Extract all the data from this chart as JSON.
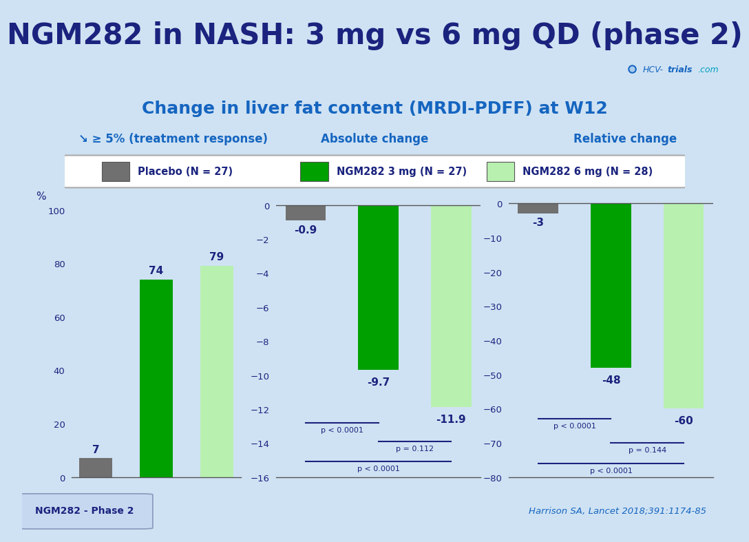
{
  "title": "NGM282 in NASH: 3 mg vs 6 mg QD (phase 2)",
  "subtitle": "Change in liver fat content (MRDI-PDFF) at W12",
  "bg_color": "#cfe2f3",
  "header_bg": "#e8f4fd",
  "title_color": "#1a237e",
  "subtitle_color": "#1565c0",
  "label_color": "#1565c0",
  "section1_title": "↘ ≥ 5% (treatment response)",
  "section2_title": "Absolute change",
  "section3_title": "Relative change",
  "legend_labels": [
    "Placebo (N = 27)",
    "NGM282 3 mg (N = 27)",
    "NGM282 6 mg (N = 28)"
  ],
  "colors": {
    "placebo": "#707070",
    "ngm3": "#00a000",
    "ngm6": "#b8f0b0"
  },
  "bar1_values": [
    7,
    74,
    79
  ],
  "bar2_values": [
    -0.9,
    -9.7,
    -11.9
  ],
  "bar3_values": [
    -3,
    -48,
    -60
  ],
  "bar1_labels": [
    "7",
    "74",
    "79"
  ],
  "bar2_labels": [
    "-0.9",
    "-9.7",
    "-11.9"
  ],
  "bar3_labels": [
    "-3",
    "-48",
    "-60"
  ],
  "bar1_ylim": [
    0,
    105
  ],
  "bar2_ylim": [
    -16,
    0.5
  ],
  "bar3_ylim": [
    -80,
    2
  ],
  "bar1_yticks": [
    0,
    20,
    40,
    60,
    80,
    100
  ],
  "bar2_yticks": [
    0,
    -2,
    -4,
    -6,
    -8,
    -10,
    -12,
    -14,
    -16
  ],
  "bar3_yticks": [
    0,
    -10,
    -20,
    -30,
    -40,
    -50,
    -60,
    -70,
    -80
  ],
  "bar1_ylabel": "%",
  "footer_left": "NGM282 - Phase 2",
  "footer_right": "Harrison SA, Lancet 2018;391:1174-85"
}
